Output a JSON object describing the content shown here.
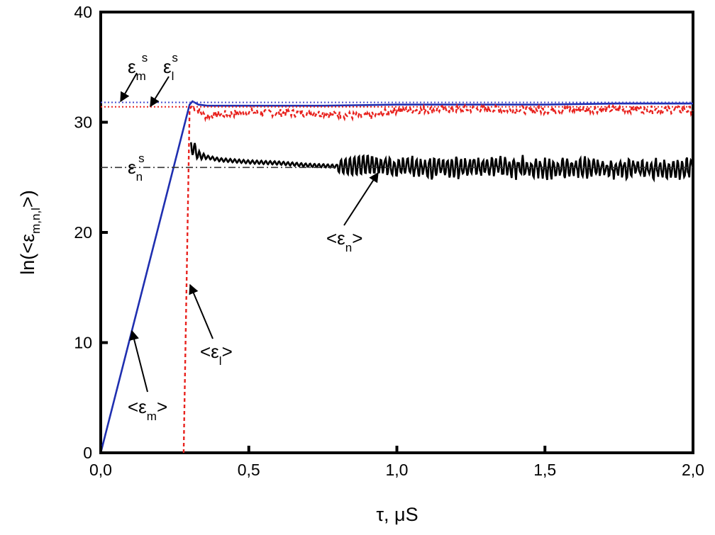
{
  "chart_data": {
    "type": "line",
    "xlabel": "τ, μS",
    "ylabel": "ln(<ε_{m,n,l}>)",
    "xlim": [
      0.0,
      2.0
    ],
    "ylim": [
      0,
      40
    ],
    "x_ticks": [
      "0,0",
      "0,5",
      "1,0",
      "1,5",
      "2,0"
    ],
    "x_tick_values": [
      0.0,
      0.5,
      1.0,
      1.5,
      2.0
    ],
    "y_ticks": [
      "0",
      "10",
      "20",
      "30",
      "40"
    ],
    "y_tick_values": [
      0,
      10,
      20,
      30,
      40
    ],
    "grid": false,
    "series": [
      {
        "name": "<ε_m>",
        "color": "#1f2fb0",
        "style": "solid",
        "x": [
          0.0,
          0.3,
          0.31,
          0.33,
          0.36,
          0.5,
          0.75,
          1.0,
          1.25,
          1.5,
          1.75,
          2.0
        ],
        "y": [
          0.0,
          31.6,
          31.9,
          31.6,
          31.5,
          31.5,
          31.5,
          31.6,
          31.6,
          31.6,
          31.7,
          31.7
        ]
      },
      {
        "name": "<ε_l>",
        "color": "#e8221e",
        "style": "dashed",
        "x": [
          0.28,
          0.3,
          0.31,
          0.35,
          0.5,
          0.75,
          0.9,
          1.0,
          1.25,
          1.5,
          1.75,
          2.0
        ],
        "y": [
          0.0,
          31.2,
          31.5,
          30.6,
          30.9,
          30.8,
          30.5,
          31.1,
          31.2,
          31.1,
          31.2,
          31.1
        ]
      },
      {
        "name": "<ε_n>",
        "color": "#000000",
        "style": "solid",
        "x": [
          0.305,
          0.31,
          0.33,
          0.4,
          0.5,
          0.6,
          0.7,
          0.8,
          0.85,
          0.9,
          0.95,
          1.0,
          1.1,
          1.2,
          1.3,
          1.4,
          1.5,
          1.6,
          1.7,
          1.8,
          1.9,
          2.0
        ],
        "y": [
          27.6,
          27.8,
          27.0,
          26.6,
          26.4,
          26.3,
          26.1,
          26.0,
          26.0,
          26.2,
          26.0,
          26.0,
          25.9,
          25.9,
          26.0,
          25.9,
          25.8,
          25.9,
          25.8,
          25.9,
          25.7,
          25.9
        ],
        "oscillation_amplitude_note": "noisy oscillations around ~26 from 0.8 to 2.0"
      },
      {
        "name": "ε_m^s",
        "color": "#4a4fd0",
        "style": "dotted",
        "x": [
          0.0,
          2.0
        ],
        "y": [
          31.8,
          31.8
        ]
      },
      {
        "name": "ε_l^s",
        "color": "#e8221e",
        "style": "dotted",
        "x": [
          0.0,
          2.0
        ],
        "y": [
          31.4,
          31.4
        ]
      },
      {
        "name": "ε_n^s",
        "color": "#333333",
        "style": "dashdot",
        "x": [
          0.0,
          2.0
        ],
        "y": [
          25.9,
          25.9
        ]
      }
    ],
    "annotations": [
      {
        "id": "eps-m-s",
        "base": "ε",
        "sub": "m",
        "sup": "s"
      },
      {
        "id": "eps-l-s",
        "base": "ε",
        "sub": "l",
        "sup": "s"
      },
      {
        "id": "eps-n-s",
        "base": "ε",
        "sub": "n",
        "sup": "s"
      },
      {
        "id": "avg-n",
        "open": "<ε",
        "sub": "n",
        "close": ">"
      },
      {
        "id": "avg-l",
        "open": "<ε",
        "sub": "l",
        "close": ">"
      },
      {
        "id": "avg-m",
        "open": "<ε",
        "sub": "m",
        "close": ">"
      }
    ],
    "axis_title_parts": {
      "y_prefix": "ln(<ε",
      "y_sub": "m,n,l",
      "y_suffix": ">)",
      "x": "τ, μS"
    }
  }
}
